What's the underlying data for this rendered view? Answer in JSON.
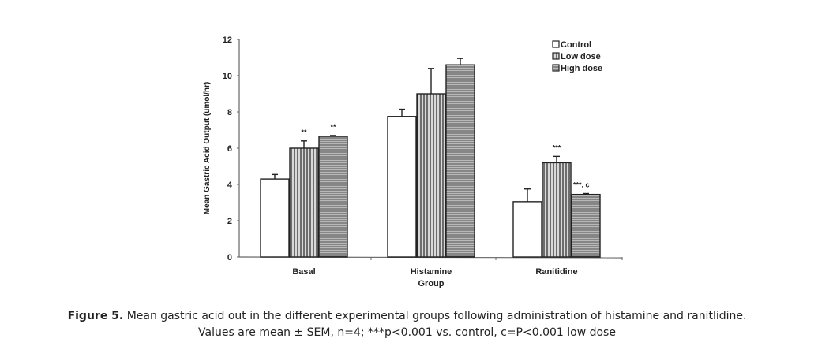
{
  "chart_data": {
    "type": "bar",
    "title": "",
    "xlabel": "Group",
    "ylabel": "Mean Gastric Acid Output (umol/hr)",
    "ylim": [
      0,
      12
    ],
    "yticks": [
      "0",
      "2",
      "4",
      "6",
      "8",
      "10",
      "12"
    ],
    "grid": false,
    "legend_position": "top-right",
    "categories": [
      "Basal",
      "Histamine",
      "Ranitidine"
    ],
    "series": [
      {
        "name": "Control",
        "pattern": "open",
        "values": [
          4.3,
          7.75,
          3.05
        ],
        "sem": [
          0.25,
          0.4,
          0.7
        ],
        "annotations": [
          "",
          "",
          ""
        ]
      },
      {
        "name": "Low dose",
        "pattern": "vertical-lines",
        "values": [
          6.0,
          9.0,
          5.2
        ],
        "sem": [
          0.4,
          1.4,
          0.35
        ],
        "annotations": [
          "**",
          "",
          "***"
        ]
      },
      {
        "name": "High dose",
        "pattern": "horizontal-lines",
        "values": [
          6.65,
          10.6,
          3.45
        ],
        "sem": [
          0.05,
          0.35,
          0.05
        ],
        "annotations": [
          "**",
          "",
          "***, c"
        ]
      }
    ]
  },
  "caption": {
    "label": "Figure 5.",
    "line1": " Mean gastric acid out in the different experimental groups following administration of histamine and ranitlidine.",
    "line2": "Values are mean ± SEM, n=4; ***p<0.001 vs. control, c=P<0.001 low dose"
  }
}
